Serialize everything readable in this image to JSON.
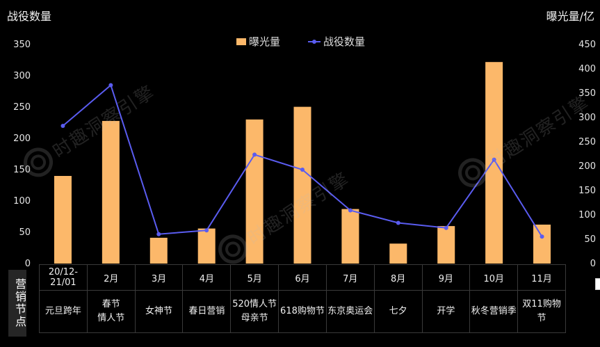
{
  "chart_data": {
    "type": "bar-line",
    "y_left_title": "战役数量",
    "y_right_title": "曝光量/亿",
    "legend": [
      "曝光量",
      "战役数量"
    ],
    "categories": [
      "20/12-21/01",
      "2月",
      "3月",
      "4月",
      "5月",
      "6月",
      "7月",
      "8月",
      "9月",
      "10月",
      "11月"
    ],
    "events": [
      "元旦跨年",
      "春节\n情人节",
      "女神节",
      "春日营销",
      "520情人节\n母亲节",
      "618购物节",
      "东京奥运会",
      "七夕",
      "开学",
      "秋冬营销季",
      "双11购物节"
    ],
    "series": [
      {
        "name": "曝光量",
        "type": "bar",
        "axis": "right",
        "color": "#fcb86a",
        "values": [
          180,
          293,
          53,
          72,
          296,
          322,
          112,
          41,
          77,
          414,
          80
        ]
      },
      {
        "name": "战役数量",
        "type": "line",
        "axis": "left",
        "color": "#5a5cf0",
        "values": [
          220,
          285,
          47,
          53,
          174,
          150,
          85,
          65,
          57,
          166,
          43
        ]
      }
    ],
    "y_left": {
      "min": 0,
      "max": 350,
      "ticks": [
        0,
        50,
        100,
        150,
        200,
        250,
        300,
        350
      ]
    },
    "y_right": {
      "min": 0,
      "max": 450,
      "ticks": [
        0,
        50,
        100,
        150,
        200,
        250,
        300,
        350,
        400,
        450
      ]
    },
    "row_header": "营销节点",
    "watermark": "时趣洞察引擎"
  }
}
